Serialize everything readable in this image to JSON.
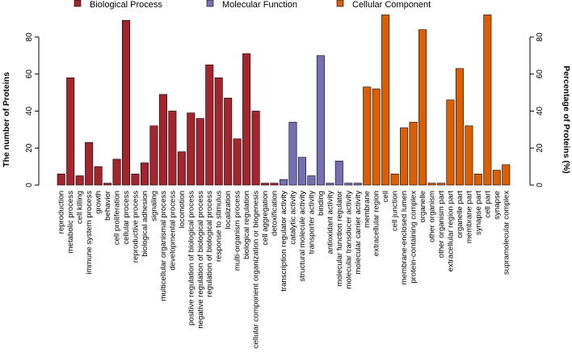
{
  "chart_data": {
    "type": "bar",
    "title": "",
    "ylabel": "The number of Proteins",
    "y2label": "Percentage of Proteins (%)",
    "ylim": [
      0,
      90
    ],
    "yticks": [
      0,
      20,
      40,
      60,
      80
    ],
    "y2lim": [
      0,
      90
    ],
    "y2ticks": [
      0,
      20,
      40,
      60,
      80
    ],
    "grid": false,
    "legend_position": "top",
    "legend": [
      {
        "name": "Biological Process",
        "color": "#a3262f"
      },
      {
        "name": "Molecular Function",
        "color": "#7570b3"
      },
      {
        "name": "Cellular Component",
        "color": "#d95f02"
      }
    ],
    "categories": [
      "reproduction",
      "metabolic process",
      "cell killing",
      "immune system process",
      "growth",
      "behavior",
      "cell proliferation",
      "cellular process",
      "reproductive process",
      "biological adhesion",
      "signaling",
      "multicellular organismal process",
      "developmental process",
      "locomotion",
      "positive regulation of biological process",
      "negative regulation of biological process",
      "regulation of biological process",
      "response to stimulus",
      "localization",
      "multi-organism process",
      "biological regulation",
      "cellular component organization or biogenesis",
      "cell aggregation",
      "detoxification",
      "transcription regulator activity",
      "catalytic activity",
      "structural molecule activity",
      "transporter activity",
      "binding",
      "antioxidant activity",
      "molecular function regulator",
      "molecular transducer activity",
      "molecular carrier activity",
      "membrane",
      "extracellular region",
      "cell",
      "cell junction",
      "membrane-enclosed lumen",
      "protein-containing complex",
      "organelle",
      "other organism",
      "other organism part",
      "extracellular region part",
      "organelle part",
      "membrane part",
      "synapse part",
      "cell part",
      "synapse",
      "supramolecular complex"
    ],
    "groups": [
      "Biological Process",
      "Biological Process",
      "Biological Process",
      "Biological Process",
      "Biological Process",
      "Biological Process",
      "Biological Process",
      "Biological Process",
      "Biological Process",
      "Biological Process",
      "Biological Process",
      "Biological Process",
      "Biological Process",
      "Biological Process",
      "Biological Process",
      "Biological Process",
      "Biological Process",
      "Biological Process",
      "Biological Process",
      "Biological Process",
      "Biological Process",
      "Biological Process",
      "Biological Process",
      "Biological Process",
      "Molecular Function",
      "Molecular Function",
      "Molecular Function",
      "Molecular Function",
      "Molecular Function",
      "Molecular Function",
      "Molecular Function",
      "Molecular Function",
      "Molecular Function",
      "Cellular Component",
      "Cellular Component",
      "Cellular Component",
      "Cellular Component",
      "Cellular Component",
      "Cellular Component",
      "Cellular Component",
      "Cellular Component",
      "Cellular Component",
      "Cellular Component",
      "Cellular Component",
      "Cellular Component",
      "Cellular Component",
      "Cellular Component",
      "Cellular Component",
      "Cellular Component"
    ],
    "values": [
      6,
      58,
      5,
      23,
      10,
      1,
      14,
      89,
      6,
      12,
      32,
      49,
      40,
      18,
      39,
      36,
      65,
      58,
      47,
      25,
      71,
      40,
      1,
      1,
      3,
      34,
      15,
      5,
      70,
      1,
      13,
      1,
      1,
      53,
      52,
      92,
      6,
      31,
      34,
      84,
      1,
      1,
      46,
      63,
      32,
      6,
      92,
      8,
      11
    ]
  }
}
